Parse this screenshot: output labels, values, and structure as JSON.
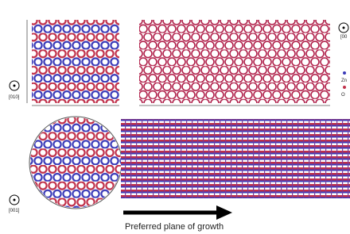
{
  "labels": {
    "axis_010": "[010]",
    "axis_001": "[001]",
    "axis_top_right": "[00",
    "legend_zn": "Zn",
    "legend_o": "O",
    "caption": "Preferred plane of growth"
  }
}
